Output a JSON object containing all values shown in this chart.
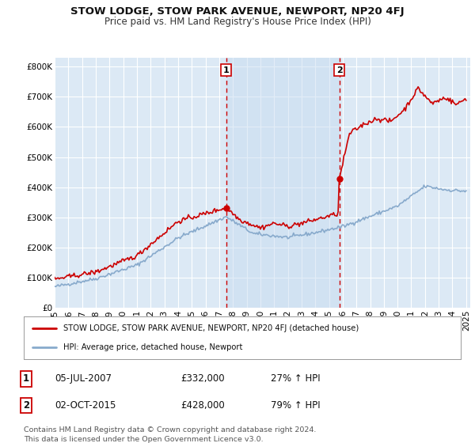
{
  "title": "STOW LODGE, STOW PARK AVENUE, NEWPORT, NP20 4FJ",
  "subtitle": "Price paid vs. HM Land Registry's House Price Index (HPI)",
  "ylabel_ticks": [
    "£0",
    "£100K",
    "£200K",
    "£300K",
    "£400K",
    "£500K",
    "£600K",
    "£700K",
    "£800K"
  ],
  "ytick_values": [
    0,
    100000,
    200000,
    300000,
    400000,
    500000,
    600000,
    700000,
    800000
  ],
  "ylim": [
    0,
    830000
  ],
  "xlim_start": 1995.0,
  "xlim_end": 2025.3,
  "background_color": "#ffffff",
  "plot_bg_color": "#dce9f5",
  "plot_bg_between": "#c8dcf0",
  "grid_color": "#ffffff",
  "red_line_color": "#cc0000",
  "blue_line_color": "#88aacc",
  "marker1_year": 2007.5,
  "marker2_year": 2015.75,
  "marker1_price": 332000,
  "marker2_price": 428000,
  "legend_label1": "STOW LODGE, STOW PARK AVENUE, NEWPORT, NP20 4FJ (detached house)",
  "legend_label2": "HPI: Average price, detached house, Newport",
  "table_row1": [
    "1",
    "05-JUL-2007",
    "£332,000",
    "27% ↑ HPI"
  ],
  "table_row2": [
    "2",
    "02-OCT-2015",
    "£428,000",
    "79% ↑ HPI"
  ],
  "footnote": "Contains HM Land Registry data © Crown copyright and database right 2024.\nThis data is licensed under the Open Government Licence v3.0.",
  "title_fontsize": 9.5,
  "subtitle_fontsize": 8.5,
  "tick_fontsize": 7.5,
  "xticks": [
    1995,
    1996,
    1997,
    1998,
    1999,
    2000,
    2001,
    2002,
    2003,
    2004,
    2005,
    2006,
    2007,
    2008,
    2009,
    2010,
    2011,
    2012,
    2013,
    2014,
    2015,
    2016,
    2017,
    2018,
    2019,
    2020,
    2021,
    2022,
    2023,
    2024,
    2025
  ]
}
